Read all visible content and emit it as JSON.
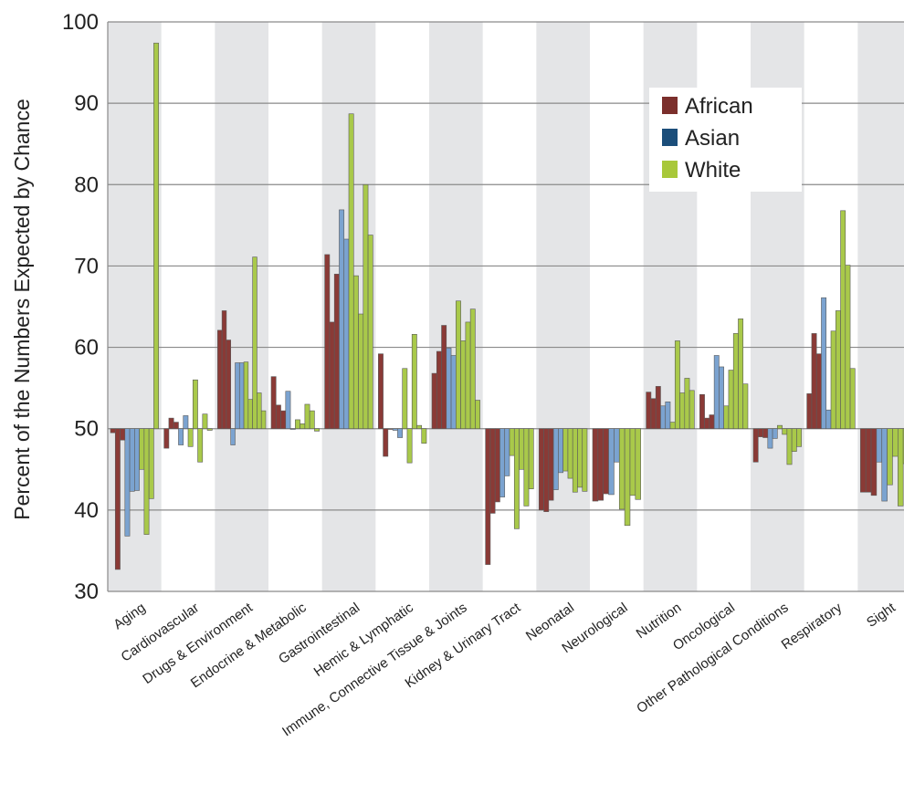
{
  "chart_data": {
    "type": "bar",
    "title": "",
    "xlabel": "",
    "ylabel": "Percent of the Numbers Expected by Chance",
    "ylim": [
      30,
      100
    ],
    "yticks": [
      30,
      40,
      50,
      60,
      70,
      80,
      90,
      100
    ],
    "baseline": 50,
    "grid": true,
    "legend_position": "top-right",
    "legend": [
      {
        "name": "African",
        "color": "#7b2f2c"
      },
      {
        "name": "Asian",
        "color": "#1b4e7a"
      },
      {
        "name": "White",
        "color": "#a8c83a"
      }
    ],
    "series_colors": {
      "African": "#8a3a36",
      "Asian": "#7ba3d0",
      "White": "#a9c94a"
    },
    "band_color": "#e4e5e7",
    "categories": [
      {
        "label": "Aging",
        "shaded": true,
        "bars": [
          {
            "s": "African",
            "v": 49.5
          },
          {
            "s": "African",
            "v": 32.7
          },
          {
            "s": "African",
            "v": 48.6
          },
          {
            "s": "Asian",
            "v": 36.8
          },
          {
            "s": "Asian",
            "v": 42.3
          },
          {
            "s": "Asian",
            "v": 42.4
          },
          {
            "s": "White",
            "v": 45.0
          },
          {
            "s": "White",
            "v": 37.0
          },
          {
            "s": "White",
            "v": 41.4
          },
          {
            "s": "White",
            "v": 97.4
          }
        ]
      },
      {
        "label": "Cardiovascular",
        "shaded": false,
        "bars": [
          {
            "s": "African",
            "v": 47.6
          },
          {
            "s": "African",
            "v": 51.3
          },
          {
            "s": "African",
            "v": 50.8
          },
          {
            "s": "Asian",
            "v": 48.0
          },
          {
            "s": "Asian",
            "v": 51.6
          },
          {
            "s": "White",
            "v": 47.8
          },
          {
            "s": "White",
            "v": 56.0
          },
          {
            "s": "White",
            "v": 45.9
          },
          {
            "s": "White",
            "v": 51.8
          },
          {
            "s": "White",
            "v": 49.8
          }
        ]
      },
      {
        "label": "Drugs & Environment",
        "shaded": true,
        "bars": [
          {
            "s": "African",
            "v": 62.1
          },
          {
            "s": "African",
            "v": 64.5
          },
          {
            "s": "African",
            "v": 60.9
          },
          {
            "s": "Asian",
            "v": 48.0
          },
          {
            "s": "Asian",
            "v": 58.1
          },
          {
            "s": "Asian",
            "v": 58.1
          },
          {
            "s": "White",
            "v": 58.2
          },
          {
            "s": "White",
            "v": 53.6
          },
          {
            "s": "White",
            "v": 71.1
          },
          {
            "s": "White",
            "v": 54.4
          },
          {
            "s": "White",
            "v": 52.2
          }
        ]
      },
      {
        "label": "Endocrine & Metabolic",
        "shaded": false,
        "bars": [
          {
            "s": "African",
            "v": 56.4
          },
          {
            "s": "African",
            "v": 52.9
          },
          {
            "s": "African",
            "v": 52.2
          },
          {
            "s": "Asian",
            "v": 54.6
          },
          {
            "s": "Asian",
            "v": 50.0
          },
          {
            "s": "White",
            "v": 51.1
          },
          {
            "s": "White",
            "v": 50.6
          },
          {
            "s": "White",
            "v": 53.0
          },
          {
            "s": "White",
            "v": 52.2
          },
          {
            "s": "White",
            "v": 49.7
          }
        ]
      },
      {
        "label": "Gastrointestinal",
        "shaded": true,
        "bars": [
          {
            "s": "African",
            "v": 71.4
          },
          {
            "s": "African",
            "v": 63.1
          },
          {
            "s": "African",
            "v": 69.0
          },
          {
            "s": "Asian",
            "v": 76.9
          },
          {
            "s": "Asian",
            "v": 73.3
          },
          {
            "s": "White",
            "v": 88.7
          },
          {
            "s": "White",
            "v": 68.8
          },
          {
            "s": "White",
            "v": 64.1
          },
          {
            "s": "White",
            "v": 80.0
          },
          {
            "s": "White",
            "v": 73.8
          }
        ]
      },
      {
        "label": "Hemic & Lymphatic",
        "shaded": false,
        "bars": [
          {
            "s": "African",
            "v": 59.2
          },
          {
            "s": "African",
            "v": 46.6
          },
          {
            "s": "African",
            "v": 50.0
          },
          {
            "s": "Asian",
            "v": 49.8
          },
          {
            "s": "Asian",
            "v": 48.9
          },
          {
            "s": "White",
            "v": 57.4
          },
          {
            "s": "White",
            "v": 45.8
          },
          {
            "s": "White",
            "v": 61.6
          },
          {
            "s": "White",
            "v": 50.4
          },
          {
            "s": "White",
            "v": 48.2
          }
        ]
      },
      {
        "label": "Immune, Connective Tissue & Joints",
        "shaded": true,
        "bars": [
          {
            "s": "African",
            "v": 56.8
          },
          {
            "s": "African",
            "v": 59.5
          },
          {
            "s": "African",
            "v": 62.7
          },
          {
            "s": "Asian",
            "v": 59.9
          },
          {
            "s": "Asian",
            "v": 59.0
          },
          {
            "s": "White",
            "v": 65.7
          },
          {
            "s": "White",
            "v": 60.8
          },
          {
            "s": "White",
            "v": 63.1
          },
          {
            "s": "White",
            "v": 64.7
          },
          {
            "s": "White",
            "v": 53.5
          }
        ]
      },
      {
        "label": "Kidney & Urinary Tract",
        "shaded": false,
        "bars": [
          {
            "s": "African",
            "v": 33.3
          },
          {
            "s": "African",
            "v": 39.6
          },
          {
            "s": "African",
            "v": 41.0
          },
          {
            "s": "Asian",
            "v": 41.6
          },
          {
            "s": "Asian",
            "v": 44.2
          },
          {
            "s": "White",
            "v": 46.7
          },
          {
            "s": "White",
            "v": 37.7
          },
          {
            "s": "White",
            "v": 45.0
          },
          {
            "s": "White",
            "v": 40.5
          },
          {
            "s": "White",
            "v": 42.6
          }
        ]
      },
      {
        "label": "Neonatal",
        "shaded": true,
        "bars": [
          {
            "s": "African",
            "v": 40.0
          },
          {
            "s": "African",
            "v": 39.8
          },
          {
            "s": "African",
            "v": 41.2
          },
          {
            "s": "Asian",
            "v": 42.5
          },
          {
            "s": "Asian",
            "v": 44.6
          },
          {
            "s": "White",
            "v": 44.8
          },
          {
            "s": "White",
            "v": 43.9
          },
          {
            "s": "White",
            "v": 42.2
          },
          {
            "s": "White",
            "v": 42.8
          },
          {
            "s": "White",
            "v": 42.3
          }
        ]
      },
      {
        "label": "Neurological",
        "shaded": false,
        "bars": [
          {
            "s": "African",
            "v": 41.1
          },
          {
            "s": "African",
            "v": 41.2
          },
          {
            "s": "African",
            "v": 42.0
          },
          {
            "s": "Asian",
            "v": 41.9
          },
          {
            "s": "Asian",
            "v": 45.9
          },
          {
            "s": "White",
            "v": 40.1
          },
          {
            "s": "White",
            "v": 38.1
          },
          {
            "s": "White",
            "v": 41.8
          },
          {
            "s": "White",
            "v": 41.3
          }
        ]
      },
      {
        "label": "Nutrition",
        "shaded": true,
        "bars": [
          {
            "s": "African",
            "v": 54.5
          },
          {
            "s": "African",
            "v": 53.7
          },
          {
            "s": "African",
            "v": 55.2
          },
          {
            "s": "Asian",
            "v": 52.8
          },
          {
            "s": "Asian",
            "v": 53.3
          },
          {
            "s": "White",
            "v": 50.8
          },
          {
            "s": "White",
            "v": 60.8
          },
          {
            "s": "White",
            "v": 54.4
          },
          {
            "s": "White",
            "v": 56.2
          },
          {
            "s": "White",
            "v": 54.7
          }
        ]
      },
      {
        "label": "Oncological",
        "shaded": false,
        "bars": [
          {
            "s": "African",
            "v": 54.2
          },
          {
            "s": "African",
            "v": 51.3
          },
          {
            "s": "African",
            "v": 51.7
          },
          {
            "s": "Asian",
            "v": 59.0
          },
          {
            "s": "Asian",
            "v": 57.6
          },
          {
            "s": "White",
            "v": 52.8
          },
          {
            "s": "White",
            "v": 57.2
          },
          {
            "s": "White",
            "v": 61.7
          },
          {
            "s": "White",
            "v": 63.5
          },
          {
            "s": "White",
            "v": 55.5
          }
        ]
      },
      {
        "label": "Other Pathological Conditions",
        "shaded": true,
        "bars": [
          {
            "s": "African",
            "v": 45.9
          },
          {
            "s": "African",
            "v": 49.0
          },
          {
            "s": "African",
            "v": 48.9
          },
          {
            "s": "Asian",
            "v": 47.6
          },
          {
            "s": "Asian",
            "v": 48.8
          },
          {
            "s": "White",
            "v": 50.4
          },
          {
            "s": "White",
            "v": 49.3
          },
          {
            "s": "White",
            "v": 45.6
          },
          {
            "s": "White",
            "v": 47.2
          },
          {
            "s": "White",
            "v": 47.8
          }
        ]
      },
      {
        "label": "Respiratory",
        "shaded": false,
        "bars": [
          {
            "s": "African",
            "v": 54.3
          },
          {
            "s": "African",
            "v": 61.7
          },
          {
            "s": "African",
            "v": 59.2
          },
          {
            "s": "Asian",
            "v": 66.1
          },
          {
            "s": "Asian",
            "v": 52.3
          },
          {
            "s": "White",
            "v": 62.0
          },
          {
            "s": "White",
            "v": 64.5
          },
          {
            "s": "White",
            "v": 76.8
          },
          {
            "s": "White",
            "v": 70.1
          },
          {
            "s": "White",
            "v": 57.4
          }
        ]
      },
      {
        "label": "Sight",
        "shaded": true,
        "bars": [
          {
            "s": "African",
            "v": 42.2
          },
          {
            "s": "African",
            "v": 42.2
          },
          {
            "s": "African",
            "v": 41.8
          },
          {
            "s": "Asian",
            "v": 45.9
          },
          {
            "s": "Asian",
            "v": 41.1
          },
          {
            "s": "White",
            "v": 43.1
          },
          {
            "s": "White",
            "v": 46.6
          },
          {
            "s": "White",
            "v": 40.5
          },
          {
            "s": "White",
            "v": 45.7
          }
        ]
      }
    ]
  }
}
